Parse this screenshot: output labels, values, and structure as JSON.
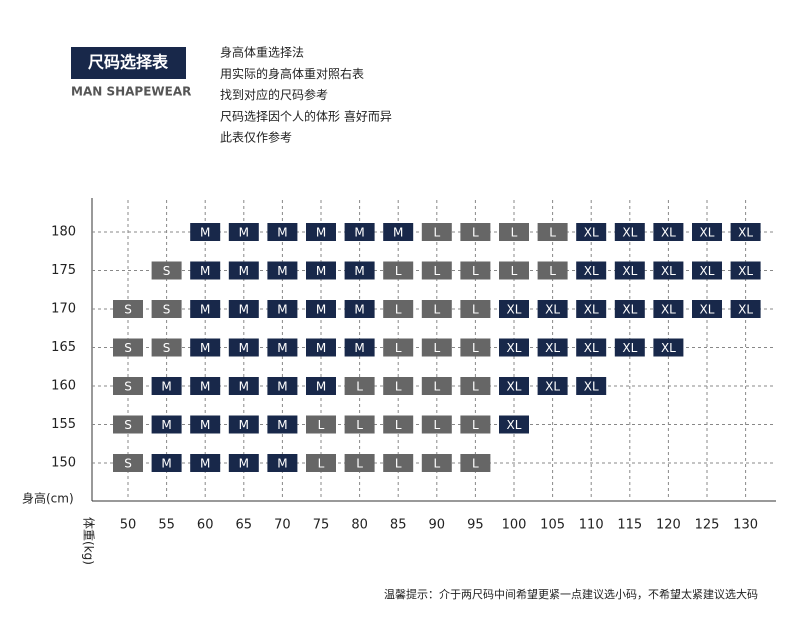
{
  "header": {
    "title": "尺码选择表",
    "subtitle": "MAN SHAPEWEAR"
  },
  "notes": [
    "身高体重选择法",
    "用实际的身高体重对照右表",
    "找到对应的尺码参考",
    "尺码选择因个人的体形 喜好而异",
    "此表仅作参考"
  ],
  "table": {
    "row_axis_label": "身高(cm)",
    "column_axis_label": "体重(kg)",
    "columns": [
      "50",
      "55",
      "60",
      "65",
      "70",
      "75",
      "80",
      "85",
      "90",
      "95",
      "100",
      "105",
      "110",
      "115",
      "120",
      "125",
      "130"
    ],
    "rows": [
      {
        "height": "180",
        "cells": [
          null,
          null,
          "M",
          "M",
          "M",
          "M",
          "M",
          "M",
          "L",
          "L",
          "L",
          "L",
          "XL",
          "XL",
          "XL",
          "XL",
          "XL"
        ]
      },
      {
        "height": "175",
        "cells": [
          null,
          "S",
          "M",
          "M",
          "M",
          "M",
          "M",
          "L",
          "L",
          "L",
          "L",
          "L",
          "XL",
          "XL",
          "XL",
          "XL",
          "XL"
        ]
      },
      {
        "height": "170",
        "cells": [
          "S",
          "S",
          "M",
          "M",
          "M",
          "M",
          "M",
          "L",
          "L",
          "L",
          "XL",
          "XL",
          "XL",
          "XL",
          "XL",
          "XL",
          "XL"
        ]
      },
      {
        "height": "165",
        "cells": [
          "S",
          "S",
          "M",
          "M",
          "M",
          "M",
          "M",
          "L",
          "L",
          "L",
          "XL",
          "XL",
          "XL",
          "XL",
          "XL",
          null,
          null
        ]
      },
      {
        "height": "160",
        "cells": [
          "S",
          "M",
          "M",
          "M",
          "M",
          "M",
          "L",
          "L",
          "L",
          "L",
          "XL",
          "XL",
          "XL",
          null,
          null,
          null,
          null
        ]
      },
      {
        "height": "155",
        "cells": [
          "S",
          "M",
          "M",
          "M",
          "M",
          "L",
          "L",
          "L",
          "L",
          "L",
          "XL",
          null,
          null,
          null,
          null,
          null,
          null
        ]
      },
      {
        "height": "150",
        "cells": [
          "S",
          "M",
          "M",
          "M",
          "M",
          "L",
          "L",
          "L",
          "L",
          "L",
          null,
          null,
          null,
          null,
          null,
          null,
          null
        ]
      }
    ]
  },
  "footer": "温馨提示：介于两尺码中间希望更紧一点建议选小码，不希望太紧建议选大码"
}
